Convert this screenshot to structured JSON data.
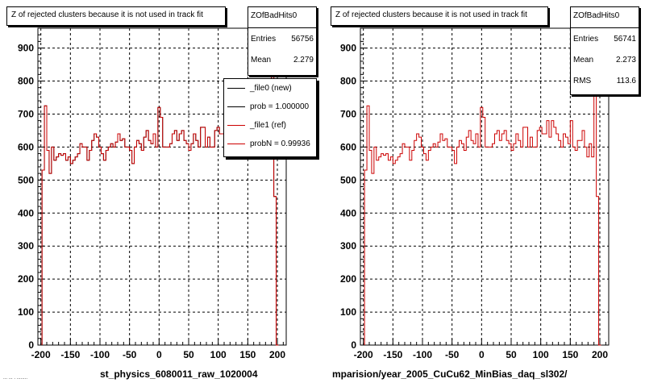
{
  "chart_data": [
    {
      "type": "histogram",
      "title": "Z of rejected clusters  because it is not used in track fit",
      "xlabel": "st_physics_6080011_raw_1020004",
      "xlim": [
        -205,
        215
      ],
      "ylim": [
        0,
        960
      ],
      "xticks": [
        -200,
        -150,
        -100,
        -50,
        0,
        50,
        100,
        150,
        200
      ],
      "yticks": [
        0,
        100,
        200,
        300,
        400,
        500,
        600,
        700,
        800,
        900
      ],
      "grid": true,
      "bin_width": 4,
      "x": [
        -196,
        -192,
        -188,
        -184,
        -180,
        -176,
        -172,
        -168,
        -164,
        -160,
        -156,
        -152,
        -148,
        -144,
        -140,
        -136,
        -132,
        -128,
        -124,
        -120,
        -116,
        -112,
        -108,
        -104,
        -100,
        -96,
        -92,
        -88,
        -84,
        -80,
        -76,
        -72,
        -68,
        -64,
        -60,
        -56,
        -52,
        -48,
        -44,
        -40,
        -36,
        -32,
        -28,
        -24,
        -20,
        -16,
        -12,
        -8,
        -4,
        0,
        4,
        8,
        12,
        16,
        20,
        24,
        28,
        32,
        36,
        40,
        44,
        48,
        52,
        56,
        60,
        64,
        68,
        72,
        76,
        80,
        84,
        88,
        92,
        96,
        100,
        104,
        108,
        112,
        116,
        120,
        124,
        128,
        132,
        136,
        140,
        144,
        148,
        152,
        156,
        160,
        164,
        168,
        172,
        176,
        180,
        184,
        188,
        192,
        196,
        200
      ],
      "series": [
        {
          "values": [
            530,
            725,
            590,
            520,
            600,
            560,
            570,
            580,
            575,
            580,
            560,
            570,
            550,
            560,
            570,
            580,
            610,
            600,
            600,
            560,
            590,
            620,
            640,
            630,
            600,
            580,
            560,
            590,
            600,
            610,
            600,
            615,
            640,
            620,
            625,
            600,
            600,
            590,
            550,
            600,
            620,
            610,
            590,
            630,
            650,
            620,
            610,
            640,
            600,
            720,
            690,
            600,
            600,
            600,
            610,
            640,
            650,
            620,
            640,
            650,
            620,
            610,
            590,
            610,
            640,
            620,
            600,
            660,
            660,
            600,
            630,
            600,
            600,
            650,
            660,
            640,
            640,
            680,
            630,
            680,
            660,
            640,
            620,
            600,
            640,
            630,
            610,
            680,
            600,
            590,
            620,
            620,
            650,
            600,
            570,
            610,
            570,
            900,
            450,
            0
          ]
        },
        {
          "values": [
            530,
            725,
            590,
            520,
            600,
            560,
            570,
            580,
            575,
            580,
            560,
            570,
            550,
            560,
            570,
            580,
            610,
            600,
            600,
            560,
            590,
            620,
            640,
            630,
            600,
            580,
            560,
            590,
            600,
            610,
            600,
            615,
            640,
            620,
            625,
            600,
            600,
            590,
            550,
            600,
            620,
            610,
            590,
            630,
            650,
            620,
            610,
            640,
            600,
            720,
            690,
            600,
            600,
            600,
            610,
            640,
            650,
            620,
            640,
            650,
            620,
            610,
            590,
            610,
            640,
            620,
            600,
            660,
            660,
            600,
            630,
            600,
            600,
            650,
            660,
            640,
            640,
            680,
            630,
            680,
            660,
            640,
            620,
            600,
            640,
            630,
            610,
            680,
            600,
            590,
            620,
            620,
            650,
            600,
            570,
            610,
            570,
            900,
            450,
            0
          ]
        }
      ],
      "colors": {
        "new": "#000000",
        "ref": "#cc0000",
        "grid": "#000000"
      },
      "stats": {
        "name": "ZOfBadHits0",
        "entries_label": "Entries",
        "entries": "56756",
        "mean_label": "Mean",
        "mean": "2.279"
      },
      "legend": {
        "placement": "top-right",
        "entries": [
          {
            "label": "_file0 (new)",
            "color": "#000000"
          },
          {
            "label": "prob = 1.000000",
            "color": "#000000"
          },
          {
            "label": "_file1 (ref)",
            "color": "#cc0000"
          },
          {
            "label": "probN = 0.99936",
            "color": "#cc0000"
          }
        ]
      }
    },
    {
      "type": "histogram",
      "title": "Z of rejected clusters  because it is not used in track fit",
      "xlabel": "mparision/year_2005_CuCu62_MinBias_daq_sl302/",
      "xlim": [
        -205,
        215
      ],
      "ylim": [
        0,
        960
      ],
      "xticks": [
        -200,
        -150,
        -100,
        -50,
        0,
        50,
        100,
        150,
        200
      ],
      "yticks": [
        0,
        100,
        200,
        300,
        400,
        500,
        600,
        700,
        800,
        900
      ],
      "grid": true,
      "bin_width": 4,
      "x": [
        -196,
        -192,
        -188,
        -184,
        -180,
        -176,
        -172,
        -168,
        -164,
        -160,
        -156,
        -152,
        -148,
        -144,
        -140,
        -136,
        -132,
        -128,
        -124,
        -120,
        -116,
        -112,
        -108,
        -104,
        -100,
        -96,
        -92,
        -88,
        -84,
        -80,
        -76,
        -72,
        -68,
        -64,
        -60,
        -56,
        -52,
        -48,
        -44,
        -40,
        -36,
        -32,
        -28,
        -24,
        -20,
        -16,
        -12,
        -8,
        -4,
        0,
        4,
        8,
        12,
        16,
        20,
        24,
        28,
        32,
        36,
        40,
        44,
        48,
        52,
        56,
        60,
        64,
        68,
        72,
        76,
        80,
        84,
        88,
        92,
        96,
        100,
        104,
        108,
        112,
        116,
        120,
        124,
        128,
        132,
        136,
        140,
        144,
        148,
        152,
        156,
        160,
        164,
        168,
        172,
        176,
        180,
        184,
        188,
        192,
        196,
        200
      ],
      "series": [
        {
          "values": [
            530,
            725,
            590,
            520,
            600,
            560,
            570,
            580,
            575,
            580,
            560,
            570,
            550,
            560,
            570,
            580,
            610,
            600,
            600,
            560,
            590,
            620,
            640,
            630,
            600,
            580,
            560,
            590,
            600,
            610,
            600,
            615,
            640,
            620,
            625,
            600,
            600,
            590,
            550,
            600,
            620,
            610,
            590,
            630,
            650,
            620,
            610,
            640,
            600,
            720,
            690,
            600,
            600,
            600,
            610,
            640,
            650,
            620,
            640,
            650,
            620,
            610,
            590,
            610,
            640,
            620,
            600,
            660,
            660,
            600,
            630,
            600,
            600,
            650,
            660,
            640,
            640,
            680,
            630,
            680,
            660,
            640,
            620,
            600,
            640,
            630,
            610,
            680,
            600,
            590,
            620,
            620,
            650,
            600,
            570,
            610,
            570,
            900,
            450,
            0
          ]
        }
      ],
      "colors": {
        "ref": "#cc0000",
        "grid": "#000000"
      },
      "stats": {
        "name": "ZOfBadHits0",
        "entries_label": "Entries",
        "entries": "56741",
        "mean_label": "Mean",
        "mean": "2.273",
        "rms_label": "RMS",
        "rms": "113.6"
      }
    }
  ],
  "footer_text": "... ... . ........"
}
